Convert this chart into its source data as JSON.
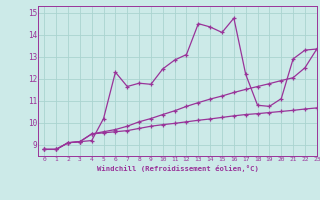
{
  "xlabel": "Windchill (Refroidissement éolien,°C)",
  "xlim": [
    -0.5,
    23
  ],
  "ylim": [
    8.5,
    15.3
  ],
  "yticks": [
    9,
    10,
    11,
    12,
    13,
    14,
    15
  ],
  "xticks": [
    0,
    1,
    2,
    3,
    4,
    5,
    6,
    7,
    8,
    9,
    10,
    11,
    12,
    13,
    14,
    15,
    16,
    17,
    18,
    19,
    20,
    21,
    22,
    23
  ],
  "bg_color": "#cceae8",
  "grid_color": "#aad4d0",
  "line_color": "#993399",
  "line1_x": [
    0,
    1,
    2,
    3,
    4,
    5,
    6,
    7,
    8,
    9,
    10,
    11,
    12,
    13,
    14,
    15,
    16,
    17,
    18,
    19,
    20,
    21,
    22,
    23
  ],
  "line1_y": [
    8.8,
    8.8,
    9.1,
    9.15,
    9.2,
    10.2,
    12.3,
    11.65,
    11.8,
    11.75,
    12.45,
    12.85,
    13.1,
    14.5,
    14.35,
    14.1,
    14.75,
    12.2,
    10.8,
    10.75,
    11.1,
    12.9,
    13.3,
    13.35
  ],
  "line2_x": [
    0,
    1,
    2,
    3,
    4,
    5,
    6,
    7,
    8,
    9,
    10,
    11,
    12,
    13,
    14,
    15,
    16,
    17,
    18,
    19,
    20,
    21,
    22,
    23
  ],
  "line2_y": [
    8.8,
    8.8,
    9.1,
    9.15,
    9.5,
    9.55,
    9.6,
    9.65,
    9.75,
    9.85,
    9.92,
    9.98,
    10.05,
    10.12,
    10.18,
    10.25,
    10.32,
    10.38,
    10.42,
    10.47,
    10.52,
    10.57,
    10.63,
    10.68
  ],
  "line3_x": [
    0,
    1,
    2,
    3,
    4,
    5,
    6,
    7,
    8,
    9,
    10,
    11,
    12,
    13,
    14,
    15,
    16,
    17,
    18,
    19,
    20,
    21,
    22,
    23
  ],
  "line3_y": [
    8.8,
    8.8,
    9.1,
    9.15,
    9.5,
    9.6,
    9.7,
    9.85,
    10.05,
    10.2,
    10.38,
    10.55,
    10.75,
    10.92,
    11.08,
    11.22,
    11.38,
    11.52,
    11.65,
    11.78,
    11.92,
    12.05,
    12.5,
    13.35
  ]
}
